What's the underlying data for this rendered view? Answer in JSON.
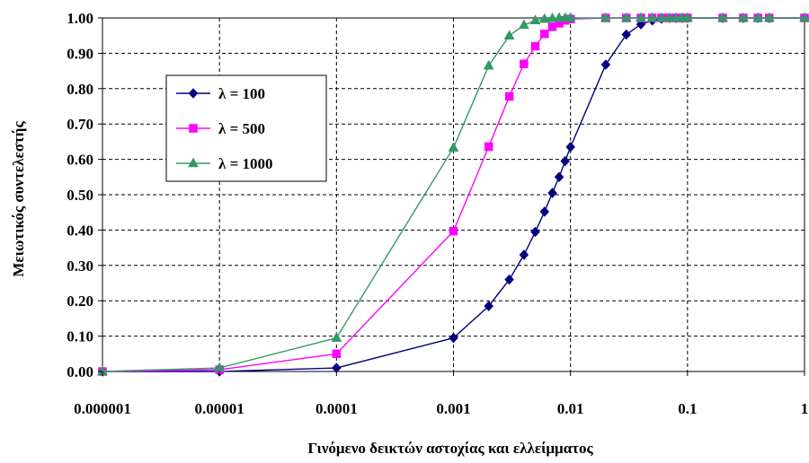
{
  "chart_data": {
    "type": "line",
    "title": "",
    "xlabel": "Γινόμενο δεικτών αστοχίας και ελλείμματος",
    "ylabel": "Μειωτικός συντελεστής",
    "x_scale": "log",
    "xlim": [
      1e-06,
      1
    ],
    "ylim": [
      0,
      1
    ],
    "grid": true,
    "legend_position": "upper-left",
    "x_tick_labels": [
      "0.000001",
      "0.00001",
      "0.0001",
      "0.001",
      "0.01",
      "0.1",
      "1"
    ],
    "x_ticks": [
      1e-06,
      1e-05,
      0.0001,
      0.001,
      0.01,
      0.1,
      1
    ],
    "y_tick_labels": [
      "0.00",
      "0.10",
      "0.20",
      "0.30",
      "0.40",
      "0.50",
      "0.60",
      "0.70",
      "0.80",
      "0.90",
      "1.00"
    ],
    "y_ticks": [
      0,
      0.1,
      0.2,
      0.3,
      0.4,
      0.5,
      0.6,
      0.7,
      0.8,
      0.9,
      1.0
    ],
    "series": [
      {
        "name": "λ = 100",
        "color": "#000080",
        "marker": "diamond",
        "x": [
          1e-06,
          1e-05,
          0.0001,
          0.001,
          0.002,
          0.003,
          0.004,
          0.005,
          0.006,
          0.007,
          0.008,
          0.009,
          0.01,
          0.02,
          0.03,
          0.04,
          0.05,
          0.06,
          0.07,
          0.08,
          0.09,
          0.1,
          0.2,
          0.3,
          0.4,
          0.5,
          1
        ],
        "y": [
          0.0,
          0.0,
          0.01,
          0.095,
          0.185,
          0.26,
          0.33,
          0.395,
          0.452,
          0.505,
          0.55,
          0.595,
          0.635,
          0.868,
          0.953,
          0.982,
          0.993,
          0.998,
          1.0,
          1.0,
          1.0,
          1.0,
          1.0,
          1.0,
          1.0,
          1.0,
          1.0
        ]
      },
      {
        "name": "λ = 500",
        "color": "#ff00ff",
        "marker": "square",
        "x": [
          1e-06,
          1e-05,
          0.0001,
          0.001,
          0.002,
          0.003,
          0.004,
          0.005,
          0.006,
          0.007,
          0.008,
          0.009,
          0.01,
          0.02,
          0.03,
          0.04,
          0.05,
          0.06,
          0.07,
          0.08,
          0.09,
          0.1,
          0.2,
          0.3,
          0.4,
          0.5,
          1
        ],
        "y": [
          0.0,
          0.005,
          0.05,
          0.397,
          0.636,
          0.778,
          0.87,
          0.92,
          0.955,
          0.975,
          0.985,
          0.993,
          0.997,
          1.0,
          1.0,
          1.0,
          1.0,
          1.0,
          1.0,
          1.0,
          1.0,
          1.0,
          1.0,
          1.0,
          1.0,
          1.0,
          1.0
        ]
      },
      {
        "name": "λ = 1000",
        "color": "#339966",
        "marker": "triangle",
        "x": [
          1e-06,
          1e-05,
          0.0001,
          0.001,
          0.002,
          0.003,
          0.004,
          0.005,
          0.006,
          0.007,
          0.008,
          0.009,
          0.01,
          0.02,
          0.03,
          0.04,
          0.05,
          0.06,
          0.07,
          0.08,
          0.09,
          0.1,
          0.2,
          0.3,
          0.4,
          0.5,
          1
        ],
        "y": [
          0.0,
          0.01,
          0.095,
          0.633,
          0.865,
          0.95,
          0.98,
          0.993,
          0.997,
          0.999,
          1.0,
          1.0,
          1.0,
          1.0,
          1.0,
          1.0,
          1.0,
          1.0,
          1.0,
          1.0,
          1.0,
          1.0,
          1.0,
          1.0,
          1.0,
          1.0,
          1.0
        ]
      }
    ]
  }
}
